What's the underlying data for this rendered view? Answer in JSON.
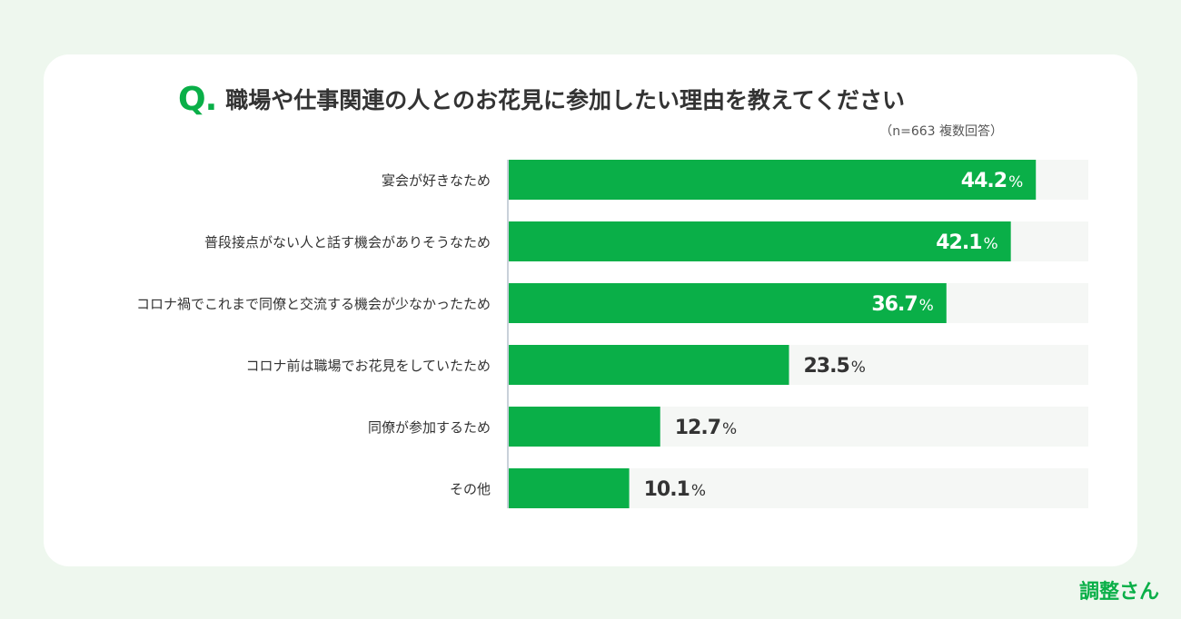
{
  "title": {
    "q_mark": "Q.",
    "question": "職場や仕事関連の人とのお花見に参加したい理由を教えてください",
    "note": "（n=663 複数回答）"
  },
  "colors": {
    "bar": "#0aaf48",
    "track": "#f5f7f5",
    "axis": "#c9d1da",
    "label_on_bar": "#ffffff",
    "label_off_bar": "#333333"
  },
  "chart_data": {
    "type": "bar",
    "orientation": "horizontal",
    "categories": [
      "宴会が好きなため",
      "普段接点がない人と話す機会がありそうなため",
      "コロナ禍でこれまで同僚と交流する機会が少なかったため",
      "コロナ前は職場でお花見をしていたため",
      "同僚が参加するため",
      "その他"
    ],
    "values": [
      44.2,
      42.1,
      36.7,
      23.5,
      12.7,
      10.1
    ],
    "value_labels": [
      "44.2",
      "42.1",
      "36.7",
      "23.5",
      "12.7",
      "10.1"
    ],
    "unit": "%",
    "xlim": [
      0,
      48.6
    ],
    "grid": false,
    "legend": "none"
  },
  "brand": {
    "logo_text": "調整さん"
  }
}
